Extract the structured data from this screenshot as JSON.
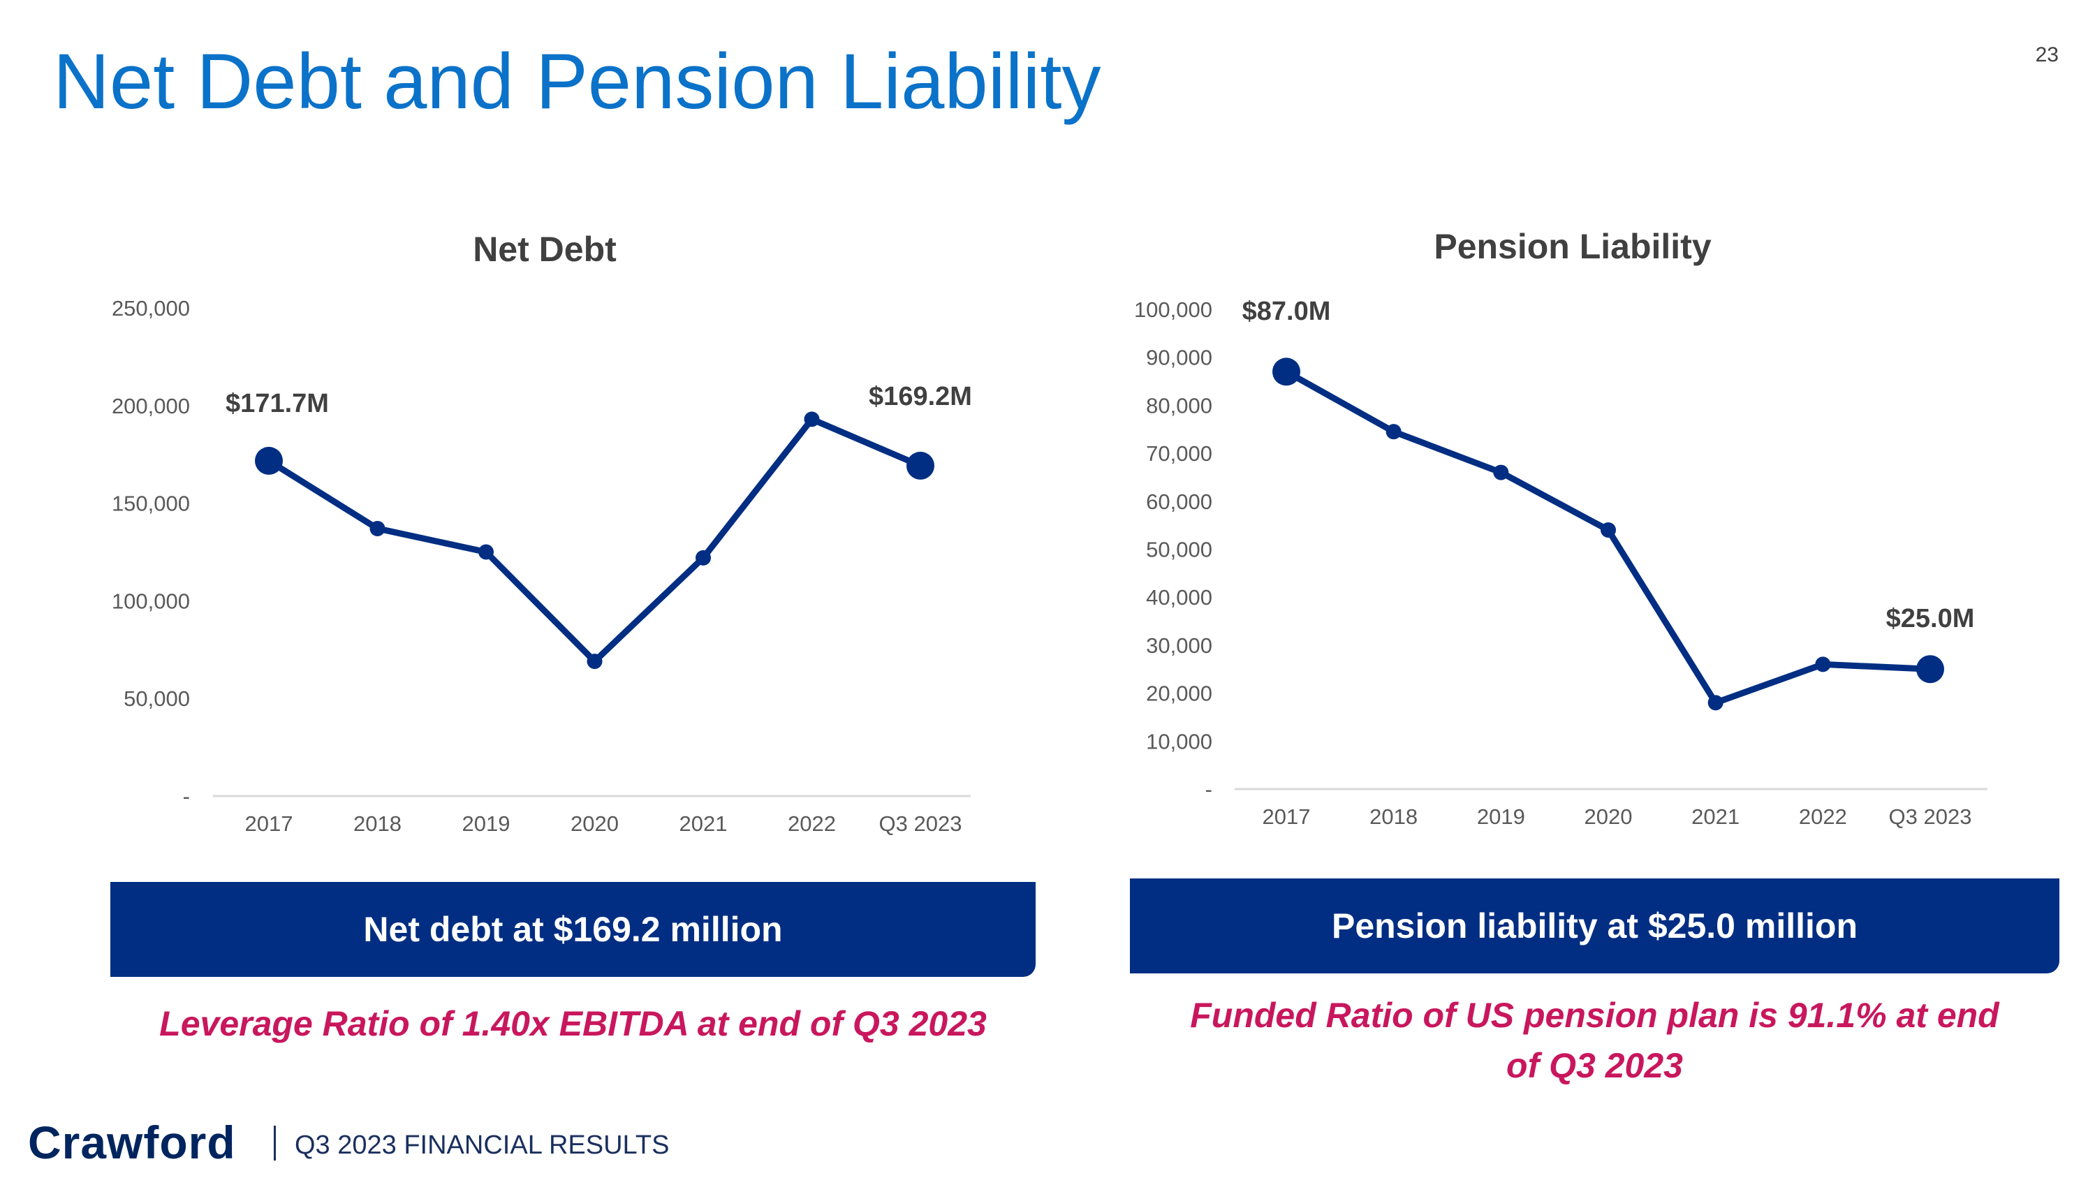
{
  "page": {
    "title": "Net Debt and Pension Liability",
    "page_number": "23"
  },
  "chart_data": [
    {
      "type": "line",
      "title": "Net Debt",
      "categories": [
        "2017",
        "2018",
        "2019",
        "2020",
        "2021",
        "2022",
        "Q3 2023"
      ],
      "values": [
        171700,
        137000,
        125000,
        69000,
        122000,
        193000,
        169200
      ],
      "ylim": [
        0,
        250000
      ],
      "yticks": [
        "-",
        "50,000",
        "100,000",
        "150,000",
        "200,000",
        "250,000"
      ],
      "annotations": [
        {
          "index": 0,
          "text": "$171.7M"
        },
        {
          "index": 6,
          "text": "$169.2M"
        }
      ],
      "color": "#012e83"
    },
    {
      "type": "line",
      "title": "Pension Liability",
      "categories": [
        "2017",
        "2018",
        "2019",
        "2020",
        "2021",
        "2022",
        "Q3 2023"
      ],
      "values": [
        87000,
        74500,
        66000,
        54000,
        18000,
        26000,
        25000
      ],
      "ylim": [
        0,
        100000
      ],
      "yticks": [
        "-",
        "10,000",
        "20,000",
        "30,000",
        "40,000",
        "50,000",
        "60,000",
        "70,000",
        "80,000",
        "90,000",
        "100,000"
      ],
      "annotations": [
        {
          "index": 0,
          "text": "$87.0M"
        },
        {
          "index": 6,
          "text": "$25.0M"
        }
      ],
      "color": "#012e83"
    }
  ],
  "banners": {
    "left": "Net debt at $169.2 million",
    "right": "Pension liability at $25.0 million"
  },
  "notes": {
    "left": "Leverage Ratio of 1.40x EBITDA at end of Q3 2023",
    "right": "Funded Ratio of US pension plan is 91.1% at end of Q3 2023"
  },
  "footer": {
    "logo": "Crawford",
    "text": "Q3 2023 FINANCIAL RESULTS"
  }
}
